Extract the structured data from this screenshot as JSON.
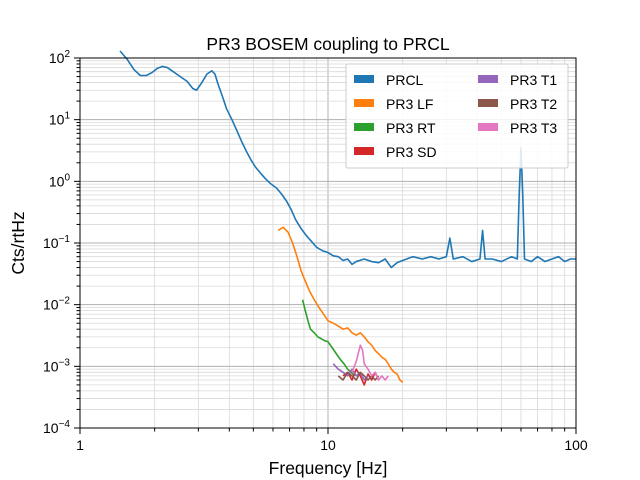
{
  "chart_data": {
    "type": "line",
    "title": "PR3 BOSEM coupling to PRCL",
    "xlabel": "Frequency [Hz]",
    "ylabel": "Cts/rtHz",
    "xscale": "log",
    "yscale": "log",
    "xlim": [
      1,
      100
    ],
    "ylim": [
      0.0001,
      100
    ],
    "x_ticks": [
      {
        "value": 1,
        "label": "1"
      },
      {
        "value": 10,
        "label": "10"
      },
      {
        "value": 100,
        "label": "100"
      }
    ],
    "y_ticks": [
      {
        "value": 0.0001,
        "base": "10",
        "exp": "−4"
      },
      {
        "value": 0.001,
        "base": "10",
        "exp": "−3"
      },
      {
        "value": 0.01,
        "base": "10",
        "exp": "−2"
      },
      {
        "value": 0.1,
        "base": "10",
        "exp": "−1"
      },
      {
        "value": 1,
        "base": "10",
        "exp": "0"
      },
      {
        "value": 10,
        "base": "10",
        "exp": "1"
      },
      {
        "value": 100,
        "base": "10",
        "exp": "2"
      }
    ],
    "grid": true,
    "legend_position": "top-right",
    "series": [
      {
        "name": "PRCL",
        "color": "#1f77b4",
        "points": [
          [
            1.45,
            130
          ],
          [
            1.55,
            95
          ],
          [
            1.65,
            65
          ],
          [
            1.75,
            52
          ],
          [
            1.85,
            52
          ],
          [
            1.95,
            58
          ],
          [
            2.05,
            68
          ],
          [
            2.15,
            73
          ],
          [
            2.25,
            70
          ],
          [
            2.35,
            62
          ],
          [
            2.5,
            52
          ],
          [
            2.7,
            42
          ],
          [
            2.85,
            32
          ],
          [
            2.95,
            30
          ],
          [
            3.1,
            40
          ],
          [
            3.25,
            55
          ],
          [
            3.4,
            62
          ],
          [
            3.5,
            55
          ],
          [
            3.6,
            38
          ],
          [
            3.75,
            24
          ],
          [
            3.9,
            15
          ],
          [
            4.1,
            10
          ],
          [
            4.3,
            6.5
          ],
          [
            4.5,
            4.3
          ],
          [
            4.7,
            3.0
          ],
          [
            4.9,
            2.2
          ],
          [
            5.1,
            1.7
          ],
          [
            5.35,
            1.35
          ],
          [
            5.6,
            1.1
          ],
          [
            5.9,
            0.9
          ],
          [
            6.2,
            0.78
          ],
          [
            6.5,
            0.62
          ],
          [
            6.8,
            0.48
          ],
          [
            7.1,
            0.35
          ],
          [
            7.4,
            0.24
          ],
          [
            7.8,
            0.17
          ],
          [
            8.2,
            0.13
          ],
          [
            8.6,
            0.105
          ],
          [
            9.0,
            0.085
          ],
          [
            9.5,
            0.075
          ],
          [
            10,
            0.07
          ],
          [
            10.5,
            0.062
          ],
          [
            11,
            0.06
          ],
          [
            11.5,
            0.052
          ],
          [
            12,
            0.055
          ],
          [
            12.5,
            0.045
          ],
          [
            13,
            0.05
          ],
          [
            14,
            0.055
          ],
          [
            15,
            0.05
          ],
          [
            16,
            0.048
          ],
          [
            17,
            0.055
          ],
          [
            18,
            0.04
          ],
          [
            19,
            0.048
          ],
          [
            20,
            0.052
          ],
          [
            22,
            0.06
          ],
          [
            24,
            0.055
          ],
          [
            26,
            0.06
          ],
          [
            28,
            0.055
          ],
          [
            30,
            0.06
          ],
          [
            31,
            0.12
          ],
          [
            32,
            0.055
          ],
          [
            35,
            0.06
          ],
          [
            38,
            0.05
          ],
          [
            41,
            0.055
          ],
          [
            42,
            0.16
          ],
          [
            43,
            0.055
          ],
          [
            46,
            0.055
          ],
          [
            50,
            0.05
          ],
          [
            55,
            0.06
          ],
          [
            58,
            0.055
          ],
          [
            59,
            0.6
          ],
          [
            60,
            3.5
          ],
          [
            61,
            0.6
          ],
          [
            62,
            0.055
          ],
          [
            66,
            0.05
          ],
          [
            70,
            0.06
          ],
          [
            75,
            0.05
          ],
          [
            80,
            0.055
          ],
          [
            85,
            0.06
          ],
          [
            90,
            0.05
          ],
          [
            95,
            0.055
          ],
          [
            100,
            0.055
          ]
        ]
      },
      {
        "name": "PR3 LF",
        "color": "#ff7f0e",
        "points": [
          [
            6.3,
            0.16
          ],
          [
            6.6,
            0.18
          ],
          [
            6.9,
            0.15
          ],
          [
            7.2,
            0.1
          ],
          [
            7.5,
            0.06
          ],
          [
            7.8,
            0.035
          ],
          [
            8.1,
            0.024
          ],
          [
            8.4,
            0.017
          ],
          [
            8.8,
            0.012
          ],
          [
            9.2,
            0.009
          ],
          [
            9.6,
            0.007
          ],
          [
            10,
            0.0055
          ],
          [
            10.5,
            0.005
          ],
          [
            11,
            0.0045
          ],
          [
            11.5,
            0.004
          ],
          [
            12,
            0.0042
          ],
          [
            12.5,
            0.0035
          ],
          [
            13,
            0.0032
          ],
          [
            13.5,
            0.0035
          ],
          [
            14,
            0.003
          ],
          [
            14.5,
            0.0025
          ],
          [
            15,
            0.0022
          ],
          [
            15.5,
            0.0018
          ],
          [
            16,
            0.0016
          ],
          [
            16.5,
            0.0014
          ],
          [
            17,
            0.0013
          ],
          [
            17.5,
            0.0011
          ],
          [
            18,
            0.0009
          ],
          [
            18.5,
            0.0008
          ],
          [
            19,
            0.00075
          ],
          [
            19.5,
            0.0006
          ],
          [
            20,
            0.00055
          ]
        ]
      },
      {
        "name": "PR3 RT",
        "color": "#2ca02c",
        "points": [
          [
            7.9,
            0.012
          ],
          [
            8.1,
            0.008
          ],
          [
            8.3,
            0.0055
          ],
          [
            8.5,
            0.004
          ],
          [
            8.8,
            0.0035
          ],
          [
            9.1,
            0.003
          ],
          [
            9.4,
            0.0028
          ],
          [
            9.7,
            0.0026
          ],
          [
            10,
            0.0025
          ],
          [
            10.4,
            0.002
          ],
          [
            10.8,
            0.0016
          ],
          [
            11.2,
            0.0013
          ],
          [
            11.6,
            0.0011
          ],
          [
            12,
            0.0009
          ],
          [
            12.4,
            0.0008
          ],
          [
            12.8,
            0.0007
          ]
        ]
      },
      {
        "name": "PR3 SD",
        "color": "#d62728",
        "points": [
          [
            11.5,
            0.0007
          ],
          [
            12,
            0.0008
          ],
          [
            12.5,
            0.0006
          ],
          [
            13,
            0.0009
          ],
          [
            13.5,
            0.0007
          ],
          [
            14,
            0.0005
          ],
          [
            14.5,
            0.00075
          ],
          [
            15,
            0.0006
          ],
          [
            15.5,
            0.0008
          ],
          [
            16,
            0.0006
          ]
        ]
      },
      {
        "name": "PR3 T1",
        "color": "#9467bd",
        "points": [
          [
            10.5,
            0.0011
          ],
          [
            11,
            0.0009
          ],
          [
            11.5,
            0.0008
          ],
          [
            12,
            0.0007
          ],
          [
            12.5,
            0.0009
          ],
          [
            13,
            0.0007
          ],
          [
            13.5,
            0.0008
          ],
          [
            14,
            0.0006
          ],
          [
            14.5,
            0.0007
          ]
        ]
      },
      {
        "name": "PR3 T2",
        "color": "#8c564b",
        "points": [
          [
            11,
            0.0007
          ],
          [
            11.5,
            0.0006
          ],
          [
            12,
            0.0008
          ],
          [
            12.5,
            0.0007
          ],
          [
            13,
            0.0006
          ],
          [
            13.5,
            0.0008
          ],
          [
            14,
            0.0007
          ],
          [
            14.5,
            0.0006
          ],
          [
            15,
            0.0007
          ],
          [
            15.5,
            0.0006
          ],
          [
            16,
            0.0007
          ]
        ]
      },
      {
        "name": "PR3 T3",
        "color": "#e377c2",
        "points": [
          [
            12.5,
            0.0008
          ],
          [
            13,
            0.0012
          ],
          [
            13.5,
            0.0022
          ],
          [
            13.8,
            0.0018
          ],
          [
            14,
            0.0011
          ],
          [
            14.5,
            0.0009
          ],
          [
            15,
            0.0007
          ],
          [
            15.5,
            0.0008
          ],
          [
            16,
            0.0006
          ],
          [
            16.5,
            0.0007
          ],
          [
            17,
            0.0006
          ],
          [
            17.5,
            0.0007
          ]
        ]
      }
    ]
  }
}
